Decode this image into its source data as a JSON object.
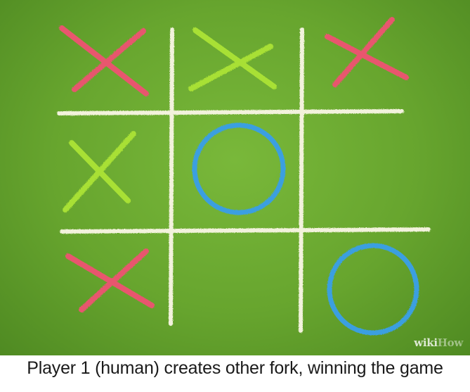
{
  "board": {
    "cells": [
      [
        "X",
        "X",
        "X"
      ],
      [
        "X",
        "O",
        ""
      ],
      [
        "X",
        "",
        "O"
      ]
    ],
    "player_colors": {
      "row0col0": "#e8566e",
      "row0col1": "#a8e034",
      "row0col2": "#e8566e",
      "row1col0": "#a8e034",
      "row1col1": "#3b9fe0",
      "row2col0": "#e8566e",
      "row2col2": "#3b9fe0"
    },
    "line_color": "#f2f2dc"
  },
  "watermark": {
    "part1": "wiki",
    "part2": "How"
  },
  "caption": "Player 1 (human) creates other fork, winning the game"
}
